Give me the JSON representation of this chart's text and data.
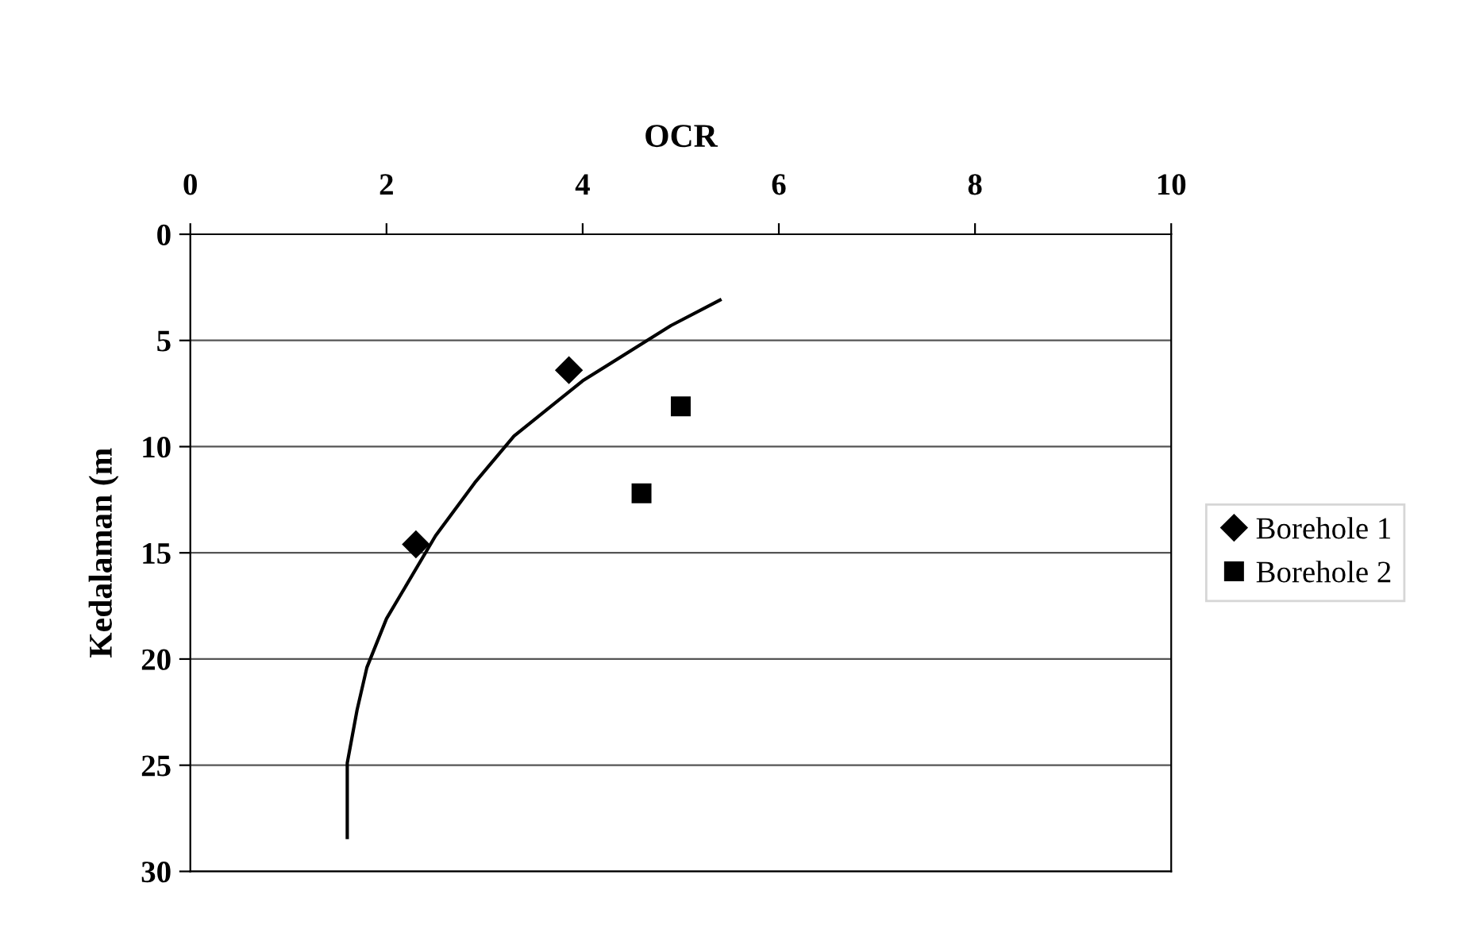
{
  "chart_data": {
    "type": "scatter",
    "xlabel": "OCR",
    "ylabel": "Kedalaman (m",
    "xlim": [
      0,
      10
    ],
    "xticks": [
      0,
      2,
      4,
      6,
      8,
      10
    ],
    "ylim": [
      30,
      0
    ],
    "yticks": [
      0,
      5,
      10,
      15,
      20,
      25,
      30
    ],
    "grid": "y",
    "legend": "right",
    "series": [
      {
        "name": "Borehole 1",
        "marker": "diamond",
        "color": "#000000",
        "x": [
          3.86,
          2.3
        ],
        "values": [
          6.4,
          14.6
        ]
      },
      {
        "name": "Borehole 2",
        "marker": "square",
        "color": "#000000",
        "x": [
          5.0,
          4.6
        ],
        "values": [
          8.1,
          12.2
        ]
      },
      {
        "type": "line",
        "marker": "none",
        "line_style": "solid",
        "color": "#000000",
        "x": [
          5.4,
          4.9,
          4.0,
          3.3,
          2.9,
          2.5,
          2.0,
          1.8,
          1.7,
          1.6,
          1.6
        ],
        "values": [
          3.1,
          4.3,
          6.9,
          9.5,
          11.7,
          14.2,
          18.1,
          20.4,
          22.4,
          24.9,
          28.4
        ]
      }
    ]
  }
}
